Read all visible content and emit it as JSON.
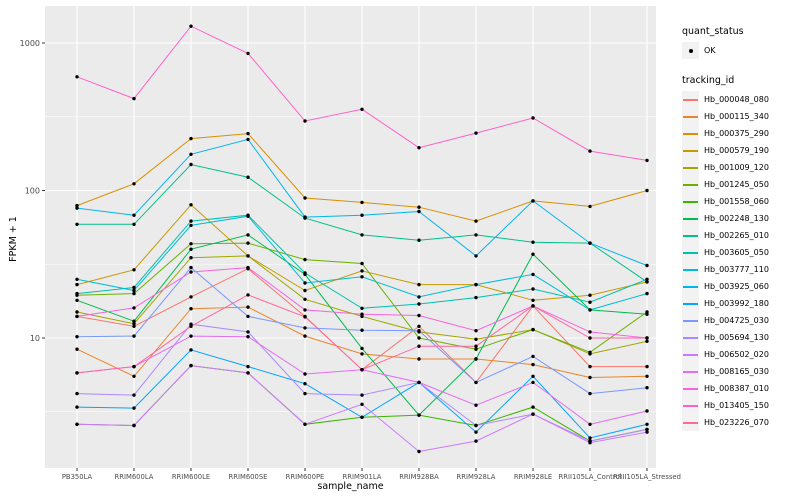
{
  "figure": {
    "background": "#FFFFFF",
    "panel_background": "#EBEBEB",
    "grid_color": "#FFFFFF",
    "axis_text_color": "#4D4D4D",
    "tick_mark_color": "#333333",
    "point_color": "#000000",
    "legend_key_background": "#F2F2F2"
  },
  "legend": {
    "quant_status_title": "quant_status",
    "quant_status_items": [
      {
        "label": "OK",
        "symbol": "point",
        "color": "#000000"
      }
    ],
    "tracking_id_title": "tracking_id"
  },
  "chart_data": {
    "type": "line",
    "title": "",
    "xlabel": "sample_name",
    "ylabel": "FPKM + 1",
    "y_scale": "log10",
    "y_ticks": [
      1000,
      100,
      10
    ],
    "y_minor_ticks": [
      316.23,
      31.623,
      3.1623
    ],
    "ylim": [
      1.3,
      1800
    ],
    "grid": true,
    "legend_position": "right",
    "marker": "black point (quant_status OK)",
    "categories": [
      "PB350LA",
      "RRIM600LA",
      "RRIM600LE",
      "RRIM600SE",
      "RRIM600PE",
      "RRIM901LA",
      "RRIM928BA",
      "RRIM928LA",
      "RRIM928LE",
      "RRII105LA_Control",
      "RRII105LA_Stressed"
    ],
    "series": [
      {
        "name": "Hb_000048_080",
        "color": "#F8766D",
        "values": [
          14,
          12,
          19,
          29.5,
          14,
          6.1,
          12,
          5.0,
          16.5,
          6.4,
          6.4
        ]
      },
      {
        "name": "Hb_000115_340",
        "color": "#E8862D",
        "values": [
          8.4,
          5.5,
          15.8,
          16.2,
          10.3,
          7.8,
          7.2,
          7.2,
          6.6,
          5.4,
          5.5
        ]
      },
      {
        "name": "Hb_000375_290",
        "color": "#D89000",
        "values": [
          79,
          111,
          225,
          243,
          89,
          83,
          77,
          62,
          85,
          78,
          100
        ]
      },
      {
        "name": "Hb_000579_190",
        "color": "#C49A00",
        "values": [
          23,
          29,
          80,
          36,
          21,
          28.5,
          23,
          23,
          18,
          19.5,
          24
        ]
      },
      {
        "name": "Hb_001009_120",
        "color": "#A3A500",
        "values": [
          15,
          12.5,
          35,
          36,
          18.3,
          14,
          11,
          9.8,
          11.4,
          7.8,
          9.5
        ]
      },
      {
        "name": "Hb_001245_050",
        "color": "#6BB100",
        "values": [
          19.5,
          20,
          43.5,
          44,
          34,
          32,
          10,
          8.4,
          11.4,
          8,
          15
        ]
      },
      {
        "name": "Hb_001558_060",
        "color": "#39B600",
        "values": [
          2.6,
          2.55,
          6.5,
          5.8,
          2.6,
          2.9,
          3.0,
          2.55,
          3.4,
          2.0,
          2.4
        ]
      },
      {
        "name": "Hb_002248_130",
        "color": "#00BB4E",
        "values": [
          18,
          13,
          40,
          50,
          27,
          8.5,
          3.0,
          7.2,
          37,
          15.5,
          14.5
        ]
      },
      {
        "name": "Hb_002265_010",
        "color": "#00C08B",
        "values": [
          59,
          59,
          150,
          123,
          65,
          50,
          46,
          50,
          44.6,
          44,
          24
        ]
      },
      {
        "name": "Hb_003605_050",
        "color": "#00C0AF",
        "values": [
          20,
          22,
          62,
          68,
          27.6,
          15.9,
          17,
          18.8,
          21.5,
          17.5,
          25
        ]
      },
      {
        "name": "Hb_003777_110",
        "color": "#00BCD8",
        "values": [
          25,
          21,
          58,
          67,
          23.6,
          26,
          19,
          23,
          27,
          15.5,
          20
        ]
      },
      {
        "name": "Hb_003925_060",
        "color": "#00B5EE",
        "values": [
          76,
          68,
          176,
          222,
          66,
          68,
          72,
          36,
          85,
          44,
          31
        ]
      },
      {
        "name": "Hb_003992_180",
        "color": "#00A5FF",
        "values": [
          3.4,
          3.35,
          8.3,
          6.4,
          4.9,
          2.9,
          5.0,
          2.3,
          5.5,
          2.1,
          2.6
        ]
      },
      {
        "name": "Hb_004725_030",
        "color": "#7997FF",
        "values": [
          10.2,
          10.3,
          30,
          14,
          11.7,
          11.3,
          11.2,
          5.0,
          7.5,
          4.2,
          4.6
        ]
      },
      {
        "name": "Hb_005694_130",
        "color": "#AC88FF",
        "values": [
          4.2,
          4.1,
          12.4,
          11,
          4.2,
          4.1,
          5.0,
          2.55,
          3.05,
          2.0,
          2.4
        ]
      },
      {
        "name": "Hb_006502_020",
        "color": "#CF78FF",
        "values": [
          2.6,
          2.55,
          6.5,
          5.8,
          2.6,
          3.55,
          1.7,
          2.0,
          3.05,
          1.95,
          2.3
        ]
      },
      {
        "name": "Hb_008165_030",
        "color": "#E76BF3",
        "values": [
          5.8,
          6.4,
          10.3,
          10.2,
          5.7,
          6.1,
          5.0,
          3.5,
          5.0,
          2.6,
          3.2
        ]
      },
      {
        "name": "Hb_008387_010",
        "color": "#F763E0",
        "values": [
          14,
          16,
          28,
          30,
          15.5,
          14.5,
          14.2,
          11.2,
          16.5,
          11,
          10
        ]
      },
      {
        "name": "Hb_013405_150",
        "color": "#FF61C9",
        "values": [
          590,
          420,
          1300,
          850,
          296,
          355,
          195,
          245,
          310,
          185,
          160
        ]
      },
      {
        "name": "Hb_023226_070",
        "color": "#FF689F",
        "values": [
          5.8,
          6.4,
          12,
          19.6,
          13.9,
          6.1,
          8.8,
          8.8,
          16.5,
          10,
          10
        ]
      }
    ]
  }
}
